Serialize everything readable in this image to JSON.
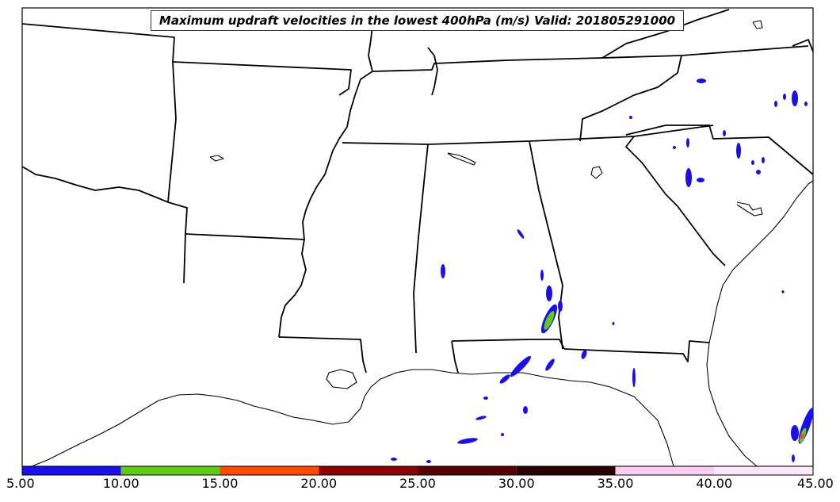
{
  "title": "Maximum updraft velocities in the lowest 400hPa (m/s) Valid: 201805291000",
  "colorbar": {
    "bins": [
      {
        "from": 5,
        "to": 10,
        "color": "#1a0ef0"
      },
      {
        "from": 10,
        "to": 15,
        "color": "#5ecb14"
      },
      {
        "from": 15,
        "to": 20,
        "color": "#ff4a00"
      },
      {
        "from": 20,
        "to": 25,
        "color": "#8f0000"
      },
      {
        "from": 25,
        "to": 30,
        "color": "#5a0000"
      },
      {
        "from": 30,
        "to": 35,
        "color": "#2b0000"
      },
      {
        "from": 35,
        "to": 40,
        "color": "#fccdf2"
      },
      {
        "from": 40,
        "to": 45,
        "color": "#fde6fa"
      }
    ],
    "tick_labels": [
      "5.00",
      "10.00",
      "15.00",
      "20.00",
      "25.00",
      "30.00",
      "35.00",
      "40.00",
      "45.00"
    ]
  }
}
